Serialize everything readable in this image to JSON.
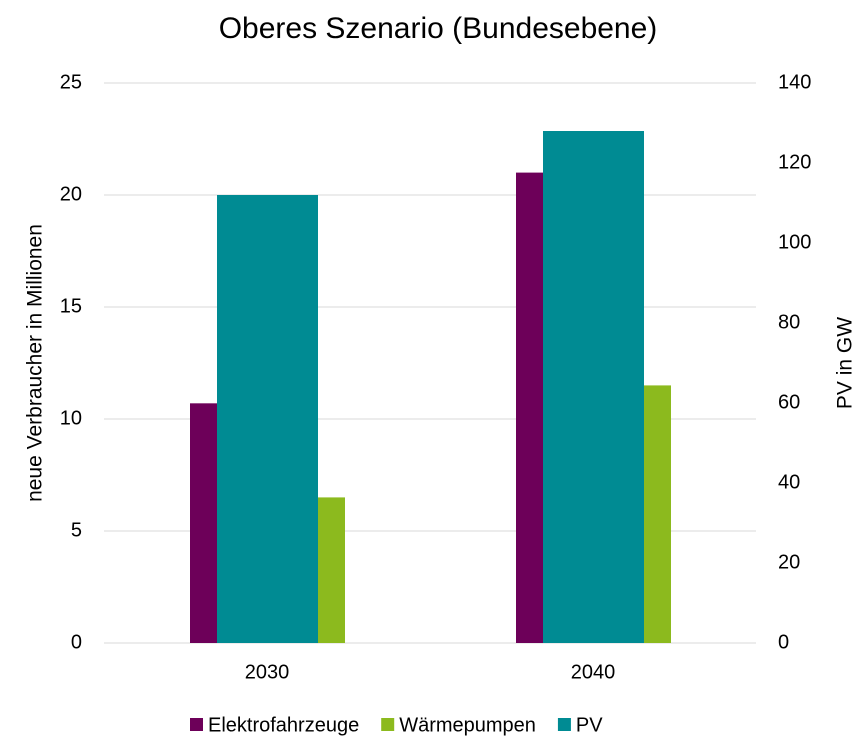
{
  "chart_data": {
    "type": "bar",
    "title": "Oberes Szenario (Bundesebene)",
    "categories": [
      "2030",
      "2040"
    ],
    "series": [
      {
        "name": "Elektrofahrzeuge",
        "color": "#6d0059",
        "values": [
          10.7,
          21.0
        ]
      },
      {
        "name": "Wärmepumpen",
        "color": "#8cba1e",
        "values": [
          6.5,
          11.5
        ]
      },
      {
        "name": "PV",
        "color": "#008b93",
        "values": [
          112,
          128
        ],
        "axis": "y2"
      }
    ],
    "ylabel": "neue Verbraucher in Millionen",
    "y2label": "PV in GW",
    "ylim": [
      0,
      25
    ],
    "yticks": [
      0,
      5,
      10,
      15,
      20,
      25
    ],
    "y2lim": [
      0,
      140
    ],
    "y2ticks": [
      0,
      20,
      40,
      60,
      80,
      100,
      120,
      140
    ],
    "grid": true,
    "legend": "bottom"
  }
}
